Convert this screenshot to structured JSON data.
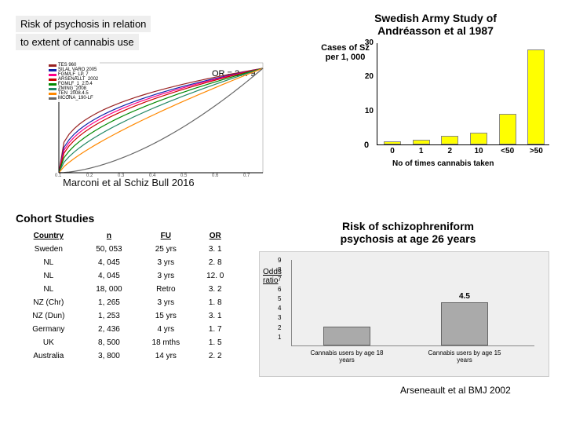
{
  "topLeft": {
    "line1": "Risk of psychosis in relation",
    "line2": " to extent of cannabis use ",
    "orText": "OR = 3… 9",
    "citation": "Marconi  et al Schiz Bull 2016",
    "legend": [
      {
        "label": "TES 960",
        "color": "#992222"
      },
      {
        "label": "SILAL VARO 2005",
        "color": "#1122aa"
      },
      {
        "label": "FGM/LF_LP, 7",
        "color": "#ff0088"
      },
      {
        "label": "ARSENALLT_2002",
        "color": "#cc0000"
      },
      {
        "label": "FGMLF_1_2.0.4",
        "color": "#008800"
      },
      {
        "label": "ZMING_2008",
        "color": "#228866"
      },
      {
        "label": "TEN_2008.4.5",
        "color": "#ff8800"
      },
      {
        "label": "MCONA_190-LF",
        "color": "#666666"
      }
    ],
    "curves": {
      "xlim": [
        0.1,
        0.8
      ],
      "ylim": [
        0,
        1
      ],
      "series": [
        {
          "color": "#992222",
          "k": 3
        },
        {
          "color": "#1122aa",
          "k": 2.6
        },
        {
          "color": "#ff0088",
          "k": 2.4
        },
        {
          "color": "#cc0000",
          "k": 2.2
        },
        {
          "color": "#008800",
          "k": 1.9
        },
        {
          "color": "#228866",
          "k": 1.6
        },
        {
          "color": "#ff8800",
          "k": 1.3
        },
        {
          "color": "#666666",
          "k": 0.6
        }
      ]
    }
  },
  "topRight": {
    "title1": "Swedish Army Study of",
    "title2": "Andréasson et al 1987",
    "yLabel1": "Cases of Sz",
    "yLabel2": "per 1, 000",
    "yticks": [
      30,
      20,
      10
    ],
    "ymax": 30,
    "bars": [
      {
        "x": "0",
        "v": 1
      },
      {
        "x": "1",
        "v": 1.5
      },
      {
        "x": "2",
        "v": 2.5
      },
      {
        "x": "10",
        "v": 3.5
      },
      {
        "x": "<50",
        "v": 9
      },
      {
        "x": ">50",
        "v": 28
      }
    ],
    "xlabel": "No of times cannabis taken",
    "zero": "0"
  },
  "cohort": {
    "title": "Cohort Studies",
    "headers": [
      "Country",
      "n",
      "FU",
      "OR"
    ],
    "rows": [
      [
        "Sweden",
        "50, 053",
        "25 yrs",
        "3. 1"
      ],
      [
        "NL",
        "4, 045",
        "3 yrs",
        "2. 8"
      ],
      [
        "NL",
        "4, 045",
        "3 yrs",
        "12. 0"
      ],
      [
        "NL",
        "18, 000",
        "Retro",
        "3. 2"
      ],
      [
        "NZ (Chr)",
        "1, 265",
        "3 yrs",
        "1. 8"
      ],
      [
        "NZ (Dun)",
        "1, 253",
        "15 yrs",
        "3. 1"
      ],
      [
        "Germany",
        "2, 436",
        "4 yrs",
        "1. 7"
      ],
      [
        "UK",
        "8, 500",
        "18 mths",
        "1. 5"
      ],
      [
        "Australia",
        "3, 800",
        "14 yrs",
        "2. 2"
      ]
    ]
  },
  "bottomRight": {
    "title1": "Risk of schizophreniform",
    "title2": "psychosis at age 26 years",
    "ylabel": "Odds\nratio",
    "yticks": [
      1,
      2,
      3,
      4,
      5,
      6,
      7,
      8,
      9
    ],
    "bars": [
      {
        "label": "Cannabis users by age 18 years",
        "v": 2,
        "disp": ""
      },
      {
        "label": "Cannabis users by age 15 years",
        "v": 4.5,
        "disp": "4.5"
      }
    ],
    "citation": "Arseneault et al BMJ 2002"
  }
}
